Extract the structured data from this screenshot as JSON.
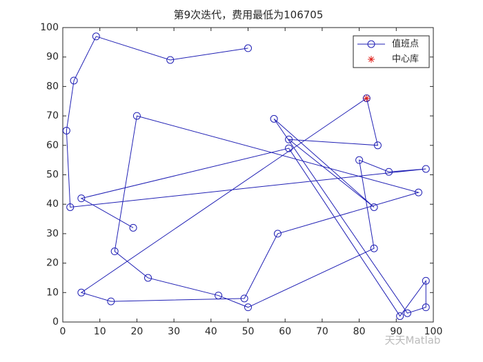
{
  "chart_data": {
    "type": "line",
    "title": "第9次迭代，费用最低为106705",
    "series": [
      {
        "name": "值班点",
        "color": "#1f1fb4",
        "marker": "circle",
        "x": [
          50,
          29,
          9,
          3,
          1,
          2,
          98,
          88,
          80,
          84,
          50,
          42,
          23,
          14,
          20,
          96,
          58,
          49,
          13,
          5,
          82,
          85,
          61,
          84,
          57,
          93,
          98,
          98,
          91,
          61,
          5,
          19
        ],
        "values": [
          93,
          89,
          97,
          82,
          65,
          39,
          52,
          51,
          55,
          25,
          5,
          9,
          15,
          24,
          70,
          44,
          30,
          8,
          7,
          10,
          76,
          60,
          62,
          39,
          69,
          3,
          5,
          14,
          2,
          59,
          42,
          32
        ]
      },
      {
        "name": "中心库",
        "color": "#e0201b",
        "marker": "star",
        "x": [
          82
        ],
        "values": [
          76
        ]
      }
    ],
    "xlim": [
      0,
      100
    ],
    "xticks": [
      0,
      10,
      20,
      30,
      40,
      50,
      60,
      70,
      80,
      90,
      100
    ],
    "ylim": [
      0,
      100
    ],
    "yticks": [
      0,
      10,
      20,
      30,
      40,
      50,
      60,
      70,
      80,
      90,
      100
    ],
    "legend": "upper-right",
    "watermark": "天天Matlab"
  }
}
